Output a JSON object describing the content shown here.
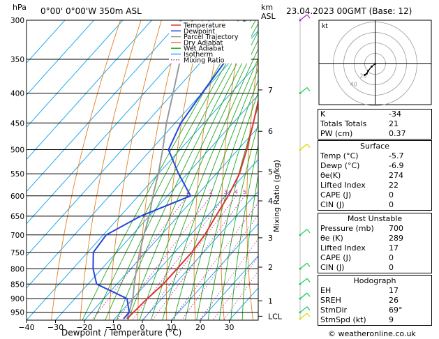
{
  "header": {
    "hpa_label": "hPa",
    "station": "0°00' 0°00'W 350m ASL",
    "km_label": "km",
    "asl_label": "ASL",
    "datetime": "23.04.2023 00GMT (Base: 12)"
  },
  "axes": {
    "xlabel": "Dewpoint / Temperature (°C)",
    "mixing_ratio_label": "Mixing Ratio (g/kg)",
    "pressure_ticks": [
      "300",
      "350",
      "400",
      "450",
      "500",
      "550",
      "600",
      "650",
      "700",
      "750",
      "800",
      "850",
      "900",
      "950"
    ],
    "temp_ticks": [
      "−40",
      "−30",
      "−20",
      "−10",
      "0",
      "10",
      "20",
      "30"
    ],
    "km_ticks": [
      {
        "p": 395,
        "label": "7"
      },
      {
        "p": 465,
        "label": "6"
      },
      {
        "p": 545,
        "label": "5"
      },
      {
        "p": 612,
        "label": "4"
      },
      {
        "p": 708,
        "label": "3"
      },
      {
        "p": 795,
        "label": "2"
      },
      {
        "p": 908,
        "label": "1"
      },
      {
        "p": 965,
        "label": "LCL"
      }
    ],
    "mixing_ratio_ticks": [
      "1",
      "2",
      "3",
      "4",
      "5",
      "8",
      "10",
      "15",
      "20",
      "25"
    ]
  },
  "legend": [
    "Temperature",
    "Dewpoint",
    "Parcel Trajectory",
    "Dry Adiabat",
    "Wet Adiabat",
    "Isotherm",
    "Mixing Ratio"
  ],
  "colors": {
    "temperature": "#dd3333",
    "dewpoint": "#2244dd",
    "parcel": "#999999",
    "dry_adiabat": "#e08020",
    "wet_adiabat": "#22aa22",
    "isotherm": "#22aaee",
    "mixing_ratio": "#cc22aa",
    "wind": "#22cc66"
  },
  "chart_data": {
    "type": "line",
    "title": "0°00' 0°00'W 350m ASL",
    "xlabel": "Dewpoint / Temperature (°C)",
    "ylabel": "hPa",
    "xlim": [
      -40,
      40
    ],
    "ylim": [
      1000,
      300
    ],
    "series": [
      {
        "name": "Temperature",
        "points": [
          [
            300,
            -43
          ],
          [
            350,
            -37
          ],
          [
            400,
            -30
          ],
          [
            450,
            -23
          ],
          [
            500,
            -17
          ],
          [
            550,
            -12
          ],
          [
            600,
            -9
          ],
          [
            650,
            -7
          ],
          [
            700,
            -5
          ],
          [
            750,
            -4
          ],
          [
            800,
            -4
          ],
          [
            850,
            -4
          ],
          [
            900,
            -5
          ],
          [
            950,
            -5.5
          ],
          [
            975,
            -5.7
          ]
        ]
      },
      {
        "name": "Dewpoint",
        "points": [
          [
            300,
            -58
          ],
          [
            350,
            -52
          ],
          [
            400,
            -50
          ],
          [
            450,
            -48
          ],
          [
            500,
            -44
          ],
          [
            550,
            -33
          ],
          [
            600,
            -22
          ],
          [
            650,
            -33
          ],
          [
            700,
            -39
          ],
          [
            750,
            -38
          ],
          [
            800,
            -33
          ],
          [
            850,
            -27
          ],
          [
            900,
            -12
          ],
          [
            950,
            -7
          ],
          [
            975,
            -6.9
          ]
        ]
      },
      {
        "name": "Parcel Trajectory",
        "points": [
          [
            975,
            -5.7
          ],
          [
            950,
            -7
          ],
          [
            900,
            -10
          ],
          [
            850,
            -14
          ],
          [
            800,
            -18
          ],
          [
            750,
            -22
          ],
          [
            700,
            -26
          ],
          [
            650,
            -30
          ],
          [
            600,
            -35
          ],
          [
            550,
            -40
          ],
          [
            500,
            -46
          ],
          [
            450,
            -53
          ],
          [
            400,
            -60
          ],
          [
            350,
            -68
          ],
          [
            300,
            -76
          ]
        ]
      }
    ]
  },
  "hodograph": {
    "label": "kt",
    "ring_labels": [
      "20",
      "40"
    ],
    "points": [
      [
        0,
        0
      ],
      [
        -5,
        -4
      ],
      [
        -10,
        -10
      ],
      [
        -12,
        -14
      ],
      [
        -15,
        -16
      ]
    ]
  },
  "indices": {
    "rows": [
      {
        "k": "K",
        "v": "-34"
      },
      {
        "k": "Totals Totals",
        "v": "21"
      },
      {
        "k": "PW (cm)",
        "v": "0.37"
      }
    ]
  },
  "surface": {
    "title": "Surface",
    "rows": [
      {
        "k": "Temp (°C)",
        "v": "-5.7"
      },
      {
        "k": "Dewp (°C)",
        "v": "-6.9"
      },
      {
        "k": "θe(K)",
        "v": "274"
      },
      {
        "k": "Lifted Index",
        "v": "22"
      },
      {
        "k": "CAPE (J)",
        "v": "0"
      },
      {
        "k": "CIN (J)",
        "v": "0"
      }
    ]
  },
  "most_unstable": {
    "title": "Most Unstable",
    "rows": [
      {
        "k": "Pressure (mb)",
        "v": "700"
      },
      {
        "k": "θe (K)",
        "v": "289"
      },
      {
        "k": "Lifted Index",
        "v": "17"
      },
      {
        "k": "CAPE (J)",
        "v": "0"
      },
      {
        "k": "CIN (J)",
        "v": "0"
      }
    ]
  },
  "hodograph_table": {
    "title": "Hodograph",
    "rows": [
      {
        "k": "EH",
        "v": "17"
      },
      {
        "k": "SREH",
        "v": "26"
      },
      {
        "k": "StmDir",
        "v": "69°"
      },
      {
        "k": "StmSpd (kt)",
        "v": "9"
      }
    ]
  },
  "footer": "© weatheronline.co.uk"
}
